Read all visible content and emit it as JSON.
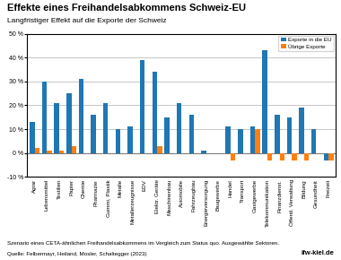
{
  "chart_data": {
    "type": "bar",
    "title": "Effekte eines Freihandelsabkommens Schweiz-EU",
    "subtitle": "Langfristiger Effekt auf die Exporte der Schweiz",
    "annotations": [
      "Szenario eines CETA-ähnlichen Freihandelsabkommens im Vergleich zum Status quo. Ausgewählte Sektoren.",
      "Quelle: Felbermayr, Heiland, Mosler, Schaltegger (2023)",
      "ifw-kiel.de"
    ],
    "categories": [
      "Agrar",
      "Lebensmittel",
      "Textilien",
      "Papier",
      "Chemie",
      "Pharmazie",
      "Gummi, Plastik",
      "Metalle",
      "Metallerzeugnisse",
      "EDV",
      "Elektr. Geräte",
      "Maschinenbau",
      "Automobile",
      "Fahrzeugbau",
      "Energieversorgung",
      "Baugewerbe",
      "Handel",
      "Transport",
      "Gastgewerbe",
      "Telekommunikation",
      "Finanzdienst.",
      "Öffentl. Verwaltung",
      "Bildung",
      "Gesundheit",
      "Freizeit"
    ],
    "series": [
      {
        "name": "Exporte in die EU",
        "values": [
          13,
          30,
          21,
          25,
          31,
          16,
          21,
          10,
          11,
          39,
          34,
          15,
          21,
          16,
          1,
          0,
          11,
          10,
          11,
          43,
          16,
          15,
          19,
          10,
          -3
        ]
      },
      {
        "name": "Übrige Exporte",
        "values": [
          2,
          1,
          1,
          3,
          0,
          0,
          0,
          0,
          0,
          0,
          3,
          0,
          0,
          0,
          0,
          0,
          -3,
          0,
          10,
          -3,
          -3,
          -3,
          -3,
          0,
          -3
        ]
      }
    ],
    "ylim": [
      -10,
      50
    ],
    "yticks": [
      {
        "value": -10,
        "label": "-10 %"
      },
      {
        "value": 0,
        "label": "0 %"
      },
      {
        "value": 10,
        "label": "10 %"
      },
      {
        "value": 20,
        "label": "20 %"
      },
      {
        "value": 30,
        "label": "30 %"
      },
      {
        "value": 40,
        "label": "40 %"
      },
      {
        "value": 50,
        "label": "50 %"
      }
    ],
    "grid": true,
    "legend": "upper right"
  }
}
